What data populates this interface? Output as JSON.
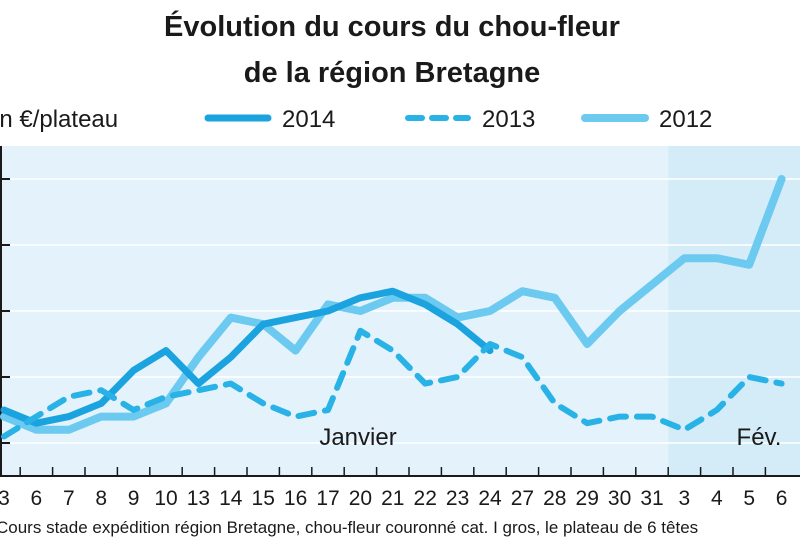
{
  "title_lines": [
    "Évolution du cours du chou-fleur",
    "de la région Bretagne"
  ],
  "unit_label": "en €/plateau",
  "source_text": "Cours stade expédition région Bretagne, chou-fleur couronné cat. I gros, le plateau de 6 têtes",
  "colors": {
    "background": "#ffffff",
    "band_janvier": "#e4f3fb",
    "band_fevrier": "#d3ecf8",
    "grid": "#ffffff",
    "axis": "#1a1a1a",
    "series_2014": "#1ba3df",
    "series_2013": "#29b2e6",
    "series_2012": "#6ccaf0"
  },
  "chart_data": {
    "type": "line",
    "title": "Évolution du cours du chou-fleur de la région Bretagne",
    "ylabel": "en €/plateau",
    "y_ticks_shown": false,
    "x": [
      "3",
      "6",
      "7",
      "8",
      "9",
      "10",
      "13",
      "14",
      "15",
      "16",
      "17",
      "20",
      "21",
      "22",
      "23",
      "24",
      "27",
      "28",
      "29",
      "30",
      "31",
      "3",
      "4",
      "5",
      "6"
    ],
    "months": [
      {
        "label": "Janvier",
        "from_index": 0,
        "to_index": 20
      },
      {
        "label": "Fév.",
        "from_index": 21,
        "to_index": 24
      }
    ],
    "grid": "horizontal",
    "legend": "top",
    "series": [
      {
        "name": "2014",
        "style": "solid-thick",
        "values": [
          3.0,
          2.8,
          2.9,
          3.1,
          3.6,
          3.9,
          3.4,
          3.8,
          4.3,
          4.4,
          4.5,
          4.7,
          4.8,
          4.6,
          4.3,
          3.9,
          null,
          null,
          null,
          null,
          null,
          null,
          null,
          null,
          null
        ]
      },
      {
        "name": "2013",
        "style": "dashed",
        "values": [
          2.6,
          2.9,
          3.2,
          3.3,
          3.0,
          3.2,
          3.3,
          3.4,
          3.1,
          2.9,
          3.0,
          4.2,
          3.9,
          3.4,
          3.5,
          4.0,
          3.8,
          3.1,
          2.8,
          2.9,
          2.9,
          2.7,
          3.0,
          3.5,
          3.4
        ]
      },
      {
        "name": "2012",
        "style": "solid",
        "values": [
          2.9,
          2.7,
          2.7,
          2.9,
          2.9,
          3.1,
          3.8,
          4.4,
          4.3,
          3.9,
          4.6,
          4.5,
          4.7,
          4.7,
          4.4,
          4.5,
          4.8,
          4.7,
          4.0,
          4.5,
          4.9,
          5.3,
          5.3,
          5.2,
          6.5
        ]
      }
    ]
  }
}
